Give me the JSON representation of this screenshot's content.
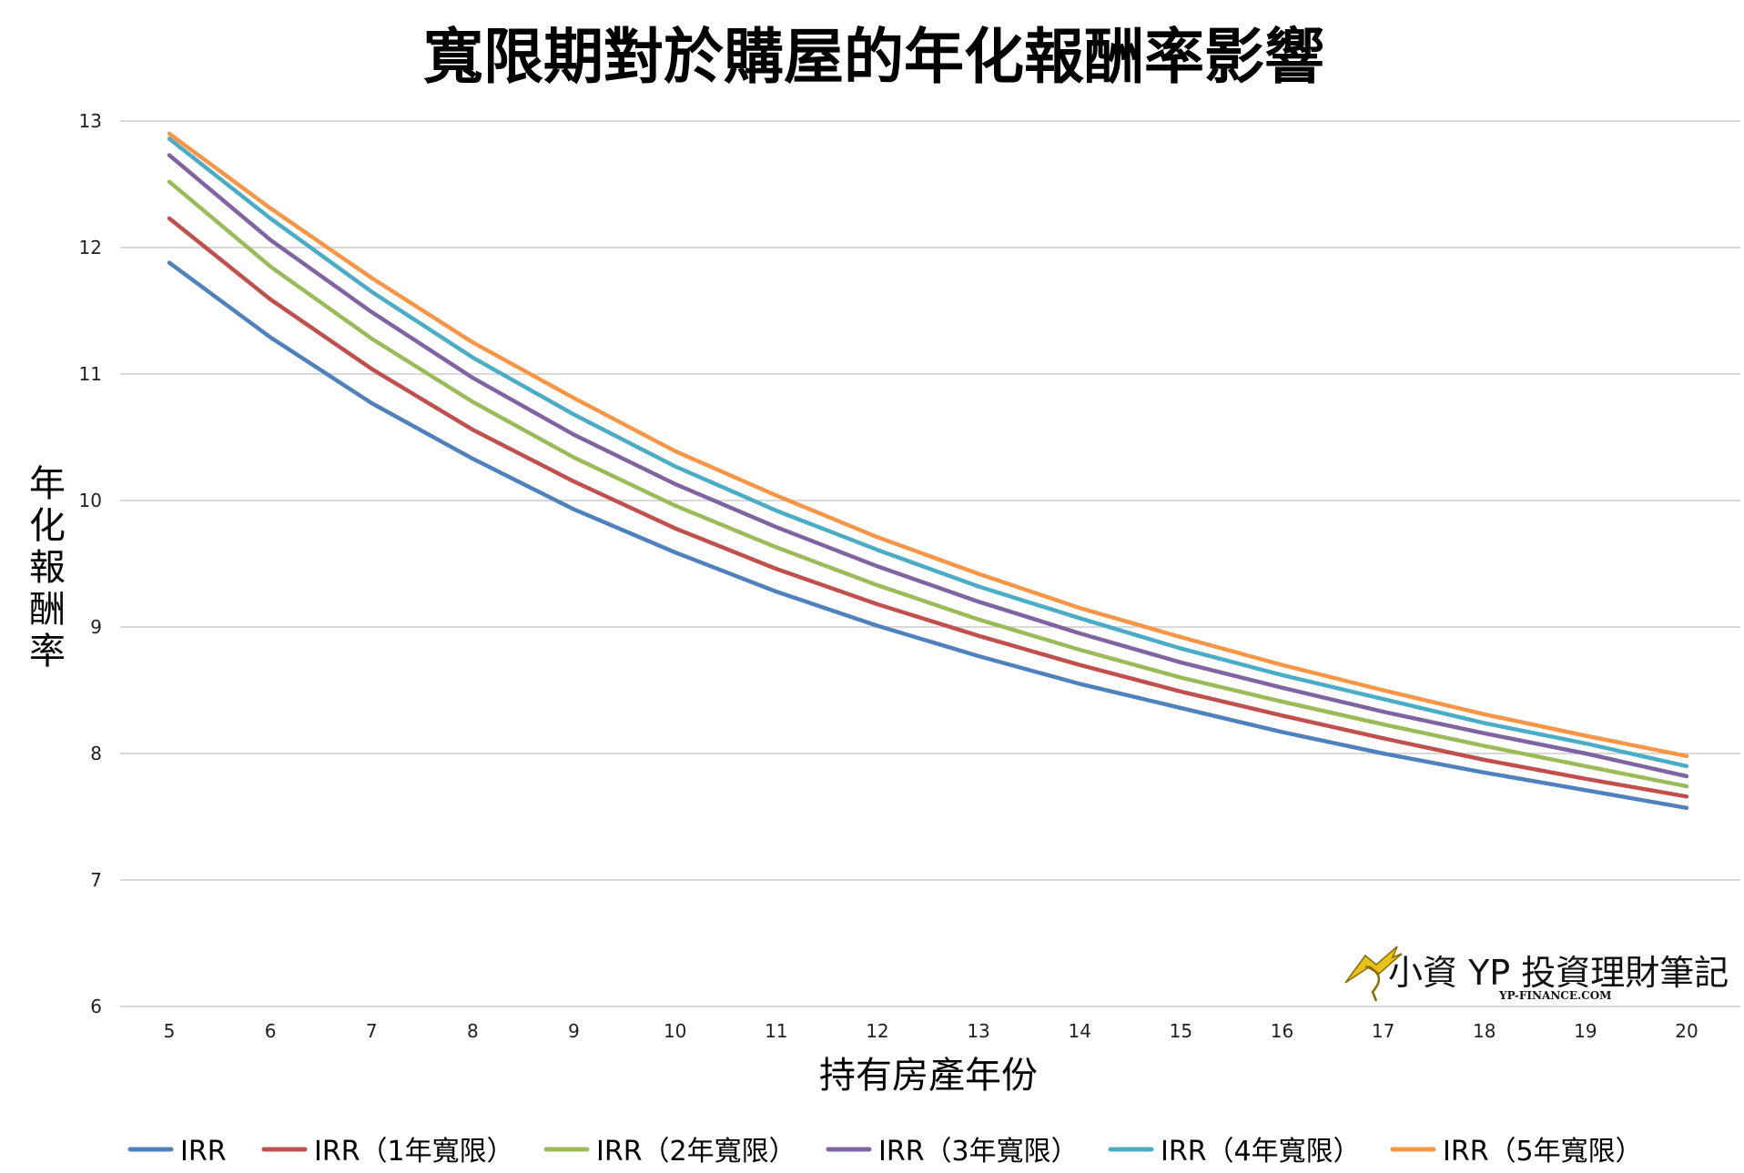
{
  "chart_data": {
    "type": "line",
    "title": "寬限期對於購屋的年化報酬率影響",
    "xlabel": "持有房產年份",
    "ylabel": "年化報酬率",
    "x": [
      5,
      6,
      7,
      8,
      9,
      10,
      11,
      12,
      13,
      14,
      15,
      16,
      17,
      18,
      19,
      20
    ],
    "ylim": [
      6,
      13
    ],
    "yticks": [
      6,
      7,
      8,
      9,
      10,
      11,
      12,
      13
    ],
    "grid": true,
    "legend_position": "bottom",
    "series": [
      {
        "name": "IRR",
        "color": "#4f81bd",
        "values": [
          11.88,
          11.29,
          10.77,
          10.33,
          9.93,
          9.59,
          9.28,
          9.01,
          8.77,
          8.55,
          8.36,
          8.17,
          8.0,
          7.85,
          7.71,
          7.57
        ]
      },
      {
        "name": "IRR（1年寬限）",
        "color": "#c0504d",
        "values": [
          12.23,
          11.59,
          11.04,
          10.56,
          10.15,
          9.78,
          9.46,
          9.18,
          8.93,
          8.7,
          8.49,
          8.3,
          8.12,
          7.95,
          7.8,
          7.66
        ]
      },
      {
        "name": "IRR（2年寬限）",
        "color": "#9bbb59",
        "values": [
          12.52,
          11.85,
          11.28,
          10.78,
          10.34,
          9.96,
          9.63,
          9.33,
          9.06,
          8.82,
          8.6,
          8.41,
          8.23,
          8.06,
          7.9,
          7.74
        ]
      },
      {
        "name": "IRR（3年寬限）",
        "color": "#8064a2",
        "values": [
          12.73,
          12.06,
          11.49,
          10.97,
          10.52,
          10.13,
          9.79,
          9.48,
          9.2,
          8.95,
          8.72,
          8.52,
          8.33,
          8.16,
          8.0,
          7.82
        ]
      },
      {
        "name": "IRR（4年寬限）",
        "color": "#4bacc6",
        "values": [
          12.86,
          12.23,
          11.65,
          11.13,
          10.68,
          10.27,
          9.92,
          9.61,
          9.32,
          9.07,
          8.83,
          8.62,
          8.43,
          8.24,
          8.08,
          7.9
        ]
      },
      {
        "name": "IRR（5年寬限）",
        "color": "#f79646",
        "values": [
          12.9,
          12.31,
          11.76,
          11.25,
          10.81,
          10.39,
          10.04,
          9.71,
          9.42,
          9.15,
          8.92,
          8.7,
          8.5,
          8.31,
          8.14,
          7.98
        ]
      }
    ]
  },
  "watermark": {
    "name": "小資 YP 投資理財筆記",
    "url_text": "YP-FINANCE.COM",
    "logo_color": "#e8c21a"
  }
}
